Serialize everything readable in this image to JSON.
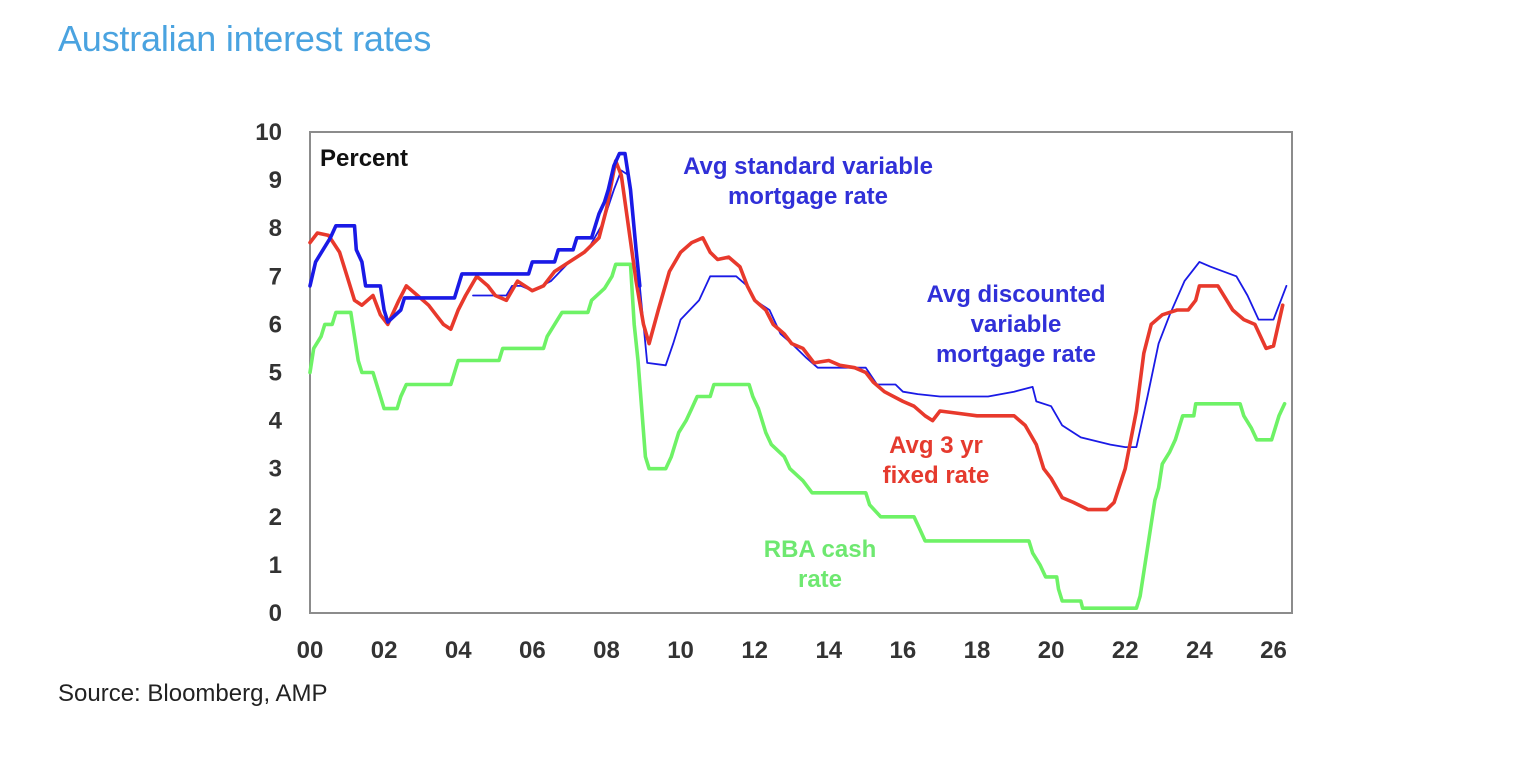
{
  "page": {
    "title": "Australian interest rates",
    "source": "Source: Bloomberg, AMP"
  },
  "chart_data": {
    "type": "line",
    "title": "",
    "xlabel": "",
    "ylabel": "",
    "unit_label": "Percent",
    "xlim": [
      2000,
      2026.5
    ],
    "ylim": [
      0,
      10
    ],
    "x_ticks": [
      {
        "value": 2000,
        "label": "00"
      },
      {
        "value": 2002,
        "label": "02"
      },
      {
        "value": 2004,
        "label": "04"
      },
      {
        "value": 2006,
        "label": "06"
      },
      {
        "value": 2008,
        "label": "08"
      },
      {
        "value": 2010,
        "label": "10"
      },
      {
        "value": 2012,
        "label": "12"
      },
      {
        "value": 2014,
        "label": "14"
      },
      {
        "value": 2016,
        "label": "16"
      },
      {
        "value": 2018,
        "label": "18"
      },
      {
        "value": 2020,
        "label": "20"
      },
      {
        "value": 2022,
        "label": "22"
      },
      {
        "value": 2024,
        "label": "24"
      },
      {
        "value": 2026,
        "label": "26"
      }
    ],
    "y_ticks": [
      0,
      1,
      2,
      3,
      4,
      5,
      6,
      7,
      8,
      9,
      10
    ],
    "grid": false,
    "legend": "inline labels",
    "series": [
      {
        "name": "Avg standard variable mortgage rate",
        "label_lines": [
          "Avg standard variable",
          "mortgage rate"
        ],
        "label_color": "#3030d8",
        "color": "#1a1ae6",
        "stroke": "thick",
        "points": [
          [
            2000.0,
            6.8
          ],
          [
            2000.15,
            7.3
          ],
          [
            2000.35,
            7.55
          ],
          [
            2000.55,
            7.8
          ],
          [
            2000.7,
            8.05
          ],
          [
            2001.2,
            8.05
          ],
          [
            2001.25,
            7.55
          ],
          [
            2001.4,
            7.3
          ],
          [
            2001.5,
            6.8
          ],
          [
            2001.9,
            6.8
          ],
          [
            2002.0,
            6.3
          ],
          [
            2002.1,
            6.05
          ],
          [
            2002.45,
            6.3
          ],
          [
            2002.55,
            6.55
          ],
          [
            2003.9,
            6.55
          ],
          [
            2004.0,
            6.8
          ],
          [
            2004.1,
            7.05
          ],
          [
            2005.9,
            7.05
          ],
          [
            2006.0,
            7.3
          ],
          [
            2006.6,
            7.3
          ],
          [
            2006.7,
            7.55
          ],
          [
            2007.1,
            7.55
          ],
          [
            2007.2,
            7.8
          ],
          [
            2007.6,
            7.8
          ],
          [
            2007.7,
            8.05
          ],
          [
            2007.8,
            8.3
          ],
          [
            2007.95,
            8.55
          ],
          [
            2008.05,
            8.8
          ],
          [
            2008.2,
            9.3
          ],
          [
            2008.35,
            9.55
          ],
          [
            2008.5,
            9.55
          ],
          [
            2008.65,
            8.8
          ],
          [
            2008.8,
            7.55
          ],
          [
            2008.9,
            6.8
          ]
        ]
      },
      {
        "name": "Avg discounted variable mortgage rate",
        "label_lines": [
          "Avg discounted",
          "variable",
          "mortgage rate"
        ],
        "label_color": "#3030d8",
        "color": "#1a1ae6",
        "stroke": "thin",
        "points": [
          [
            2004.4,
            6.6
          ],
          [
            2005.3,
            6.6
          ],
          [
            2005.45,
            6.8
          ],
          [
            2005.7,
            6.8
          ],
          [
            2006.0,
            6.7
          ],
          [
            2006.5,
            6.9
          ],
          [
            2007.0,
            7.3
          ],
          [
            2007.5,
            7.55
          ],
          [
            2007.9,
            8.1
          ],
          [
            2008.2,
            8.8
          ],
          [
            2008.4,
            9.2
          ],
          [
            2008.6,
            9.1
          ],
          [
            2008.8,
            7.6
          ],
          [
            2009.0,
            6.0
          ],
          [
            2009.1,
            5.2
          ],
          [
            2009.6,
            5.15
          ],
          [
            2009.8,
            5.6
          ],
          [
            2010.0,
            6.1
          ],
          [
            2010.5,
            6.5
          ],
          [
            2010.8,
            7.0
          ],
          [
            2011.5,
            7.0
          ],
          [
            2011.8,
            6.8
          ],
          [
            2012.0,
            6.5
          ],
          [
            2012.4,
            6.3
          ],
          [
            2012.7,
            5.8
          ],
          [
            2013.0,
            5.6
          ],
          [
            2013.4,
            5.3
          ],
          [
            2013.7,
            5.1
          ],
          [
            2015.0,
            5.1
          ],
          [
            2015.3,
            4.75
          ],
          [
            2015.8,
            4.75
          ],
          [
            2016.0,
            4.6
          ],
          [
            2016.4,
            4.55
          ],
          [
            2017.0,
            4.5
          ],
          [
            2018.3,
            4.5
          ],
          [
            2019.0,
            4.6
          ],
          [
            2019.5,
            4.7
          ],
          [
            2019.6,
            4.4
          ],
          [
            2020.0,
            4.3
          ],
          [
            2020.3,
            3.9
          ],
          [
            2020.8,
            3.65
          ],
          [
            2021.6,
            3.5
          ],
          [
            2022.0,
            3.45
          ],
          [
            2022.3,
            3.45
          ],
          [
            2022.6,
            4.5
          ],
          [
            2022.9,
            5.6
          ],
          [
            2023.2,
            6.2
          ],
          [
            2023.6,
            6.9
          ],
          [
            2023.9,
            7.2
          ],
          [
            2024.0,
            7.3
          ],
          [
            2024.3,
            7.2
          ],
          [
            2025.0,
            7.0
          ],
          [
            2025.3,
            6.6
          ],
          [
            2025.6,
            6.1
          ],
          [
            2026.0,
            6.1
          ],
          [
            2026.2,
            6.5
          ],
          [
            2026.35,
            6.8
          ]
        ]
      },
      {
        "name": "Avg 3 yr fixed rate",
        "label_lines": [
          "Avg 3 yr",
          "fixed rate"
        ],
        "label_color": "#e53a2e",
        "color": "#e8392c",
        "stroke": "thick",
        "points": [
          [
            2000.0,
            7.7
          ],
          [
            2000.2,
            7.9
          ],
          [
            2000.5,
            7.85
          ],
          [
            2000.8,
            7.5
          ],
          [
            2001.0,
            7.0
          ],
          [
            2001.2,
            6.5
          ],
          [
            2001.4,
            6.4
          ],
          [
            2001.7,
            6.6
          ],
          [
            2001.9,
            6.2
          ],
          [
            2002.1,
            6.0
          ],
          [
            2002.4,
            6.5
          ],
          [
            2002.6,
            6.8
          ],
          [
            2002.9,
            6.6
          ],
          [
            2003.2,
            6.4
          ],
          [
            2003.4,
            6.2
          ],
          [
            2003.6,
            6.0
          ],
          [
            2003.8,
            5.9
          ],
          [
            2004.0,
            6.3
          ],
          [
            2004.2,
            6.6
          ],
          [
            2004.5,
            7.0
          ],
          [
            2004.8,
            6.8
          ],
          [
            2005.0,
            6.6
          ],
          [
            2005.3,
            6.5
          ],
          [
            2005.6,
            6.9
          ],
          [
            2006.0,
            6.7
          ],
          [
            2006.3,
            6.8
          ],
          [
            2006.6,
            7.1
          ],
          [
            2007.0,
            7.3
          ],
          [
            2007.4,
            7.5
          ],
          [
            2007.8,
            7.8
          ],
          [
            2008.0,
            8.4
          ],
          [
            2008.25,
            9.4
          ],
          [
            2008.4,
            9.1
          ],
          [
            2008.6,
            8.0
          ],
          [
            2008.8,
            6.9
          ],
          [
            2009.0,
            6.0
          ],
          [
            2009.15,
            5.6
          ],
          [
            2009.4,
            6.3
          ],
          [
            2009.7,
            7.1
          ],
          [
            2010.0,
            7.5
          ],
          [
            2010.3,
            7.7
          ],
          [
            2010.6,
            7.8
          ],
          [
            2010.8,
            7.5
          ],
          [
            2011.0,
            7.35
          ],
          [
            2011.3,
            7.4
          ],
          [
            2011.6,
            7.2
          ],
          [
            2011.8,
            6.8
          ],
          [
            2012.0,
            6.5
          ],
          [
            2012.3,
            6.3
          ],
          [
            2012.5,
            6.0
          ],
          [
            2012.8,
            5.8
          ],
          [
            2013.0,
            5.6
          ],
          [
            2013.3,
            5.5
          ],
          [
            2013.6,
            5.2
          ],
          [
            2014.0,
            5.25
          ],
          [
            2014.3,
            5.15
          ],
          [
            2014.7,
            5.1
          ],
          [
            2015.0,
            5.0
          ],
          [
            2015.2,
            4.8
          ],
          [
            2015.5,
            4.6
          ],
          [
            2016.0,
            4.4
          ],
          [
            2016.3,
            4.3
          ],
          [
            2016.6,
            4.1
          ],
          [
            2016.8,
            4.0
          ],
          [
            2017.0,
            4.2
          ],
          [
            2017.5,
            4.15
          ],
          [
            2018.0,
            4.1
          ],
          [
            2019.0,
            4.1
          ],
          [
            2019.3,
            3.9
          ],
          [
            2019.6,
            3.5
          ],
          [
            2019.8,
            3.0
          ],
          [
            2020.0,
            2.8
          ],
          [
            2020.3,
            2.4
          ],
          [
            2020.6,
            2.3
          ],
          [
            2021.0,
            2.15
          ],
          [
            2021.5,
            2.15
          ],
          [
            2021.7,
            2.3
          ],
          [
            2022.0,
            3.0
          ],
          [
            2022.3,
            4.2
          ],
          [
            2022.5,
            5.4
          ],
          [
            2022.7,
            6.0
          ],
          [
            2023.0,
            6.2
          ],
          [
            2023.4,
            6.3
          ],
          [
            2023.7,
            6.3
          ],
          [
            2023.9,
            6.5
          ],
          [
            2024.0,
            6.8
          ],
          [
            2024.5,
            6.8
          ],
          [
            2024.9,
            6.3
          ],
          [
            2025.2,
            6.1
          ],
          [
            2025.5,
            6.0
          ],
          [
            2025.8,
            5.5
          ],
          [
            2026.0,
            5.55
          ],
          [
            2026.25,
            6.4
          ]
        ]
      },
      {
        "name": "RBA cash rate",
        "label_lines": [
          "RBA cash",
          "rate"
        ],
        "label_color": "#6ee870",
        "color": "#6ef266",
        "stroke": "thick",
        "points": [
          [
            2000.0,
            5.0
          ],
          [
            2000.1,
            5.5
          ],
          [
            2000.3,
            5.75
          ],
          [
            2000.4,
            6.0
          ],
          [
            2000.6,
            6.0
          ],
          [
            2000.7,
            6.25
          ],
          [
            2001.1,
            6.25
          ],
          [
            2001.2,
            5.75
          ],
          [
            2001.3,
            5.25
          ],
          [
            2001.4,
            5.0
          ],
          [
            2001.7,
            5.0
          ],
          [
            2001.8,
            4.75
          ],
          [
            2001.9,
            4.5
          ],
          [
            2002.0,
            4.25
          ],
          [
            2002.35,
            4.25
          ],
          [
            2002.45,
            4.5
          ],
          [
            2002.6,
            4.75
          ],
          [
            2003.8,
            4.75
          ],
          [
            2003.9,
            5.0
          ],
          [
            2004.0,
            5.25
          ],
          [
            2005.1,
            5.25
          ],
          [
            2005.2,
            5.5
          ],
          [
            2006.3,
            5.5
          ],
          [
            2006.4,
            5.75
          ],
          [
            2006.6,
            6.0
          ],
          [
            2006.8,
            6.25
          ],
          [
            2007.5,
            6.25
          ],
          [
            2007.6,
            6.5
          ],
          [
            2007.95,
            6.75
          ],
          [
            2008.15,
            7.0
          ],
          [
            2008.25,
            7.25
          ],
          [
            2008.65,
            7.25
          ],
          [
            2008.75,
            6.0
          ],
          [
            2008.85,
            5.25
          ],
          [
            2008.95,
            4.25
          ],
          [
            2009.05,
            3.25
          ],
          [
            2009.15,
            3.0
          ],
          [
            2009.6,
            3.0
          ],
          [
            2009.75,
            3.25
          ],
          [
            2009.85,
            3.5
          ],
          [
            2009.95,
            3.75
          ],
          [
            2010.15,
            4.0
          ],
          [
            2010.3,
            4.25
          ],
          [
            2010.45,
            4.5
          ],
          [
            2010.8,
            4.5
          ],
          [
            2010.9,
            4.75
          ],
          [
            2011.85,
            4.75
          ],
          [
            2011.95,
            4.5
          ],
          [
            2012.1,
            4.25
          ],
          [
            2012.3,
            3.75
          ],
          [
            2012.45,
            3.5
          ],
          [
            2012.8,
            3.25
          ],
          [
            2012.95,
            3.0
          ],
          [
            2013.3,
            2.75
          ],
          [
            2013.55,
            2.5
          ],
          [
            2014.0,
            2.5
          ],
          [
            2015.0,
            2.5
          ],
          [
            2015.1,
            2.25
          ],
          [
            2015.4,
            2.0
          ],
          [
            2016.3,
            2.0
          ],
          [
            2016.45,
            1.75
          ],
          [
            2016.6,
            1.5
          ],
          [
            2019.4,
            1.5
          ],
          [
            2019.5,
            1.25
          ],
          [
            2019.7,
            1.0
          ],
          [
            2019.85,
            0.75
          ],
          [
            2020.15,
            0.75
          ],
          [
            2020.2,
            0.5
          ],
          [
            2020.3,
            0.25
          ],
          [
            2020.8,
            0.25
          ],
          [
            2020.85,
            0.1
          ],
          [
            2022.3,
            0.1
          ],
          [
            2022.4,
            0.35
          ],
          [
            2022.5,
            0.85
          ],
          [
            2022.6,
            1.35
          ],
          [
            2022.7,
            1.85
          ],
          [
            2022.8,
            2.35
          ],
          [
            2022.9,
            2.6
          ],
          [
            2023.0,
            3.1
          ],
          [
            2023.2,
            3.35
          ],
          [
            2023.35,
            3.6
          ],
          [
            2023.45,
            3.85
          ],
          [
            2023.55,
            4.1
          ],
          [
            2023.85,
            4.1
          ],
          [
            2023.9,
            4.35
          ],
          [
            2025.1,
            4.35
          ],
          [
            2025.2,
            4.1
          ],
          [
            2025.4,
            3.85
          ],
          [
            2025.55,
            3.6
          ],
          [
            2025.95,
            3.6
          ],
          [
            2026.05,
            3.85
          ],
          [
            2026.15,
            4.1
          ],
          [
            2026.3,
            4.35
          ]
        ]
      }
    ]
  }
}
